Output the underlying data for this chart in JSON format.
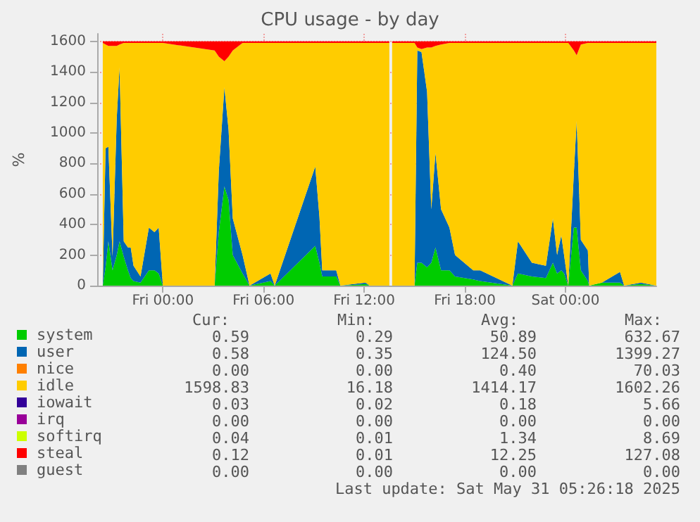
{
  "chart_data": {
    "type": "area",
    "title": "CPU usage - by day",
    "ylabel": "%",
    "stacked": true,
    "grid": true,
    "legend": "bottom left",
    "x": [
      "2025-05-29T20:25",
      "2025-05-29T20:35",
      "2025-05-29T20:45",
      "2025-05-29T21:00",
      "2025-05-29T21:15",
      "2025-05-29T21:25",
      "2025-05-29T21:40",
      "2025-05-29T21:55",
      "2025-05-29T22:05",
      "2025-05-29T22:15",
      "2025-05-29T22:40",
      "2025-05-29T23:10",
      "2025-05-29T23:30",
      "2025-05-29T23:45",
      "2025-05-30T00:00",
      "2025-05-30T03:05",
      "2025-05-30T03:20",
      "2025-05-30T03:40",
      "2025-05-30T03:55",
      "2025-05-30T04:10",
      "2025-05-30T04:45",
      "2025-05-30T05:10",
      "2025-05-30T06:25",
      "2025-05-30T06:40",
      "2025-05-30T09:05",
      "2025-05-30T09:20",
      "2025-05-30T09:30",
      "2025-05-30T10:20",
      "2025-05-30T10:35",
      "2025-05-30T12:05",
      "2025-05-30T12:20",
      "2025-05-30T13:30",
      "2025-05-30T13:35",
      "2025-05-30T13:40",
      "2025-05-30T15:00",
      "2025-05-30T15:10",
      "2025-05-30T15:25",
      "2025-05-30T15:45",
      "2025-05-30T16:00",
      "2025-05-30T16:15",
      "2025-05-30T16:35",
      "2025-05-30T17:05",
      "2025-05-30T17:25",
      "2025-05-30T18:30",
      "2025-05-30T18:55",
      "2025-05-30T20:50",
      "2025-05-30T21:10",
      "2025-05-30T22:00",
      "2025-05-30T22:50",
      "2025-05-30T23:15",
      "2025-05-30T23:30",
      "2025-05-30T23:45",
      "2025-05-30T23:55",
      "2025-05-31T00:10",
      "2025-05-31T00:30",
      "2025-05-31T00:40",
      "2025-05-31T00:55",
      "2025-05-31T01:20",
      "2025-05-31T01:25",
      "2025-05-31T02:10",
      "2025-05-31T03:15",
      "2025-05-31T03:30",
      "2025-05-31T04:30",
      "2025-05-31T05:25"
    ],
    "xlim": [
      "2025-05-29T20:05",
      "2025-05-31T05:25"
    ],
    "xticks": [
      {
        "value": "2025-05-30T00:00",
        "label": "Fri 00:00"
      },
      {
        "value": "2025-05-30T06:00",
        "label": "Fri 06:00"
      },
      {
        "value": "2025-05-30T12:00",
        "label": "Fri 12:00"
      },
      {
        "value": "2025-05-30T18:00",
        "label": "Fri 18:00"
      },
      {
        "value": "2025-05-31T00:00",
        "label": "Sat 00:00"
      }
    ],
    "ylim": [
      0,
      1650
    ],
    "yticks": [
      0,
      200,
      400,
      600,
      800,
      1000,
      1200,
      1400,
      1600
    ],
    "series": [
      {
        "name": "system",
        "color": "#00cc00",
        "values": [
          0,
          120,
          290,
          100,
          200,
          290,
          190,
          100,
          50,
          30,
          20,
          100,
          100,
          80,
          0,
          0,
          350,
          650,
          560,
          200,
          80,
          0,
          30,
          0,
          260,
          150,
          60,
          60,
          0,
          10,
          0,
          0,
          null,
          0,
          0,
          150,
          150,
          120,
          150,
          250,
          100,
          100,
          60,
          40,
          30,
          0,
          80,
          60,
          50,
          150,
          80,
          100,
          80,
          0,
          380,
          380,
          100,
          30,
          0,
          20,
          20,
          0,
          10,
          0
        ]
      },
      {
        "name": "user",
        "color": "#0066b3",
        "values": [
          0,
          780,
          620,
          90,
          900,
          1140,
          100,
          150,
          200,
          100,
          40,
          280,
          250,
          300,
          0,
          0,
          400,
          650,
          460,
          240,
          120,
          0,
          50,
          0,
          520,
          300,
          40,
          40,
          0,
          10,
          0,
          0,
          null,
          0,
          0,
          1390,
          1380,
          1150,
          350,
          620,
          400,
          280,
          140,
          60,
          70,
          0,
          210,
          90,
          80,
          290,
          120,
          230,
          120,
          0,
          360,
          700,
          200,
          200,
          0,
          0,
          70,
          0,
          10,
          0
        ]
      },
      {
        "name": "nice",
        "color": "#ff8000",
        "values": [
          null,
          null,
          null,
          null,
          null,
          null,
          null,
          null,
          null,
          null,
          null,
          null,
          null,
          null,
          null,
          null,
          null,
          null,
          null,
          null,
          null,
          null,
          null,
          null,
          null,
          null,
          null,
          null,
          null,
          null,
          null,
          null,
          null,
          null,
          null,
          null,
          null,
          null,
          null,
          null,
          null,
          null,
          null,
          null,
          null,
          null,
          null,
          null,
          null,
          null,
          null,
          null,
          null,
          null,
          null,
          null,
          null,
          null,
          null,
          null,
          null,
          null,
          null,
          null
        ]
      },
      {
        "name": "idle",
        "color": "#ffcc00",
        "values": [
          1590,
          680,
          660,
          1380,
          470,
          150,
          1300,
          1340,
          1340,
          1460,
          1530,
          1210,
          1240,
          1210,
          1590,
          1540,
          750,
          170,
          480,
          1100,
          1390,
          1590,
          1510,
          1590,
          810,
          1140,
          1490,
          1490,
          1590,
          1570,
          1590,
          1590,
          null,
          1590,
          1590,
          20,
          20,
          290,
          1060,
          700,
          1080,
          1210,
          1390,
          1490,
          1490,
          1590,
          1300,
          1440,
          1460,
          1150,
          1390,
          1260,
          1390,
          1590,
          800,
          430,
          1280,
          1360,
          1590,
          1570,
          1500,
          1590,
          1570,
          1590
        ]
      },
      {
        "name": "iowait",
        "color": "#330099",
        "values": [
          null,
          null,
          null,
          null,
          null,
          null,
          null,
          null,
          null,
          null,
          null,
          null,
          null,
          null,
          null,
          null,
          null,
          null,
          null,
          null,
          null,
          null,
          null,
          null,
          null,
          null,
          null,
          null,
          null,
          null,
          null,
          null,
          null,
          null,
          null,
          null,
          null,
          null,
          null,
          null,
          null,
          null,
          null,
          null,
          null,
          null,
          null,
          null,
          null,
          null,
          null,
          null,
          null,
          null,
          null,
          null,
          null,
          null,
          null,
          null,
          null,
          null,
          null,
          null
        ]
      },
      {
        "name": "irq",
        "color": "#990099",
        "values": [
          null,
          null,
          null,
          null,
          null,
          null,
          null,
          null,
          null,
          null,
          null,
          null,
          null,
          null,
          null,
          null,
          null,
          null,
          null,
          null,
          null,
          null,
          null,
          null,
          null,
          null,
          null,
          null,
          null,
          null,
          null,
          null,
          null,
          null,
          null,
          null,
          null,
          null,
          null,
          null,
          null,
          null,
          null,
          null,
          null,
          null,
          null,
          null,
          null,
          null,
          null,
          null,
          null,
          null,
          null,
          null,
          null,
          null,
          null,
          null,
          null,
          null,
          null,
          null
        ]
      },
      {
        "name": "softirq",
        "color": "#ccff00",
        "values": [
          null,
          null,
          null,
          null,
          null,
          null,
          null,
          null,
          null,
          null,
          null,
          null,
          null,
          null,
          null,
          null,
          null,
          null,
          null,
          null,
          null,
          null,
          null,
          null,
          null,
          null,
          null,
          null,
          null,
          null,
          null,
          null,
          null,
          null,
          null,
          null,
          null,
          null,
          null,
          null,
          null,
          null,
          null,
          null,
          null,
          null,
          null,
          null,
          null,
          null,
          null,
          null,
          null,
          null,
          null,
          null,
          null,
          null,
          null,
          null,
          null,
          null,
          null,
          null
        ]
      },
      {
        "name": "steal",
        "color": "#ff0000",
        "values": [
          10,
          20,
          30,
          30,
          30,
          20,
          10,
          10,
          10,
          10,
          10,
          10,
          10,
          10,
          10,
          60,
          100,
          130,
          100,
          60,
          10,
          10,
          10,
          10,
          10,
          10,
          10,
          10,
          10,
          10,
          10,
          10,
          null,
          10,
          10,
          40,
          50,
          40,
          40,
          30,
          20,
          10,
          10,
          10,
          10,
          10,
          10,
          10,
          10,
          10,
          10,
          10,
          10,
          10,
          60,
          90,
          20,
          10,
          10,
          10,
          10,
          10,
          10,
          10
        ]
      },
      {
        "name": "guest",
        "color": "#808080",
        "values": [
          null,
          null,
          null,
          null,
          null,
          null,
          null,
          null,
          null,
          null,
          null,
          null,
          null,
          null,
          null,
          null,
          null,
          null,
          null,
          null,
          null,
          null,
          null,
          null,
          null,
          null,
          null,
          null,
          null,
          null,
          null,
          null,
          null,
          null,
          null,
          null,
          null,
          null,
          null,
          null,
          null,
          null,
          null,
          null,
          null,
          null,
          null,
          null,
          null,
          null,
          null,
          null,
          null,
          null,
          null,
          null,
          null,
          null,
          null,
          null,
          null,
          null,
          null,
          null
        ]
      }
    ],
    "annotations": [
      "Cur:",
      "Min:",
      "Avg:",
      "Max:",
      "0.59",
      "0.29",
      "50.89",
      "632.67",
      "0.58",
      "0.35",
      "124.50",
      "1399.27",
      "0.00",
      "0.00",
      "0.40",
      "70.03",
      "1598.83",
      "16.18",
      "1414.17",
      "1602.26",
      "0.03",
      "0.02",
      "0.18",
      "5.66",
      "0.00",
      "0.00",
      "0.00",
      "0.00",
      "0.04",
      "0.01",
      "1.34",
      "8.69",
      "0.12",
      "0.01",
      "12.25",
      "127.08",
      "0.00",
      "0.00",
      "0.00",
      "0.00",
      "Last update: Sat May 31 05:26:18 2025"
    ]
  }
}
